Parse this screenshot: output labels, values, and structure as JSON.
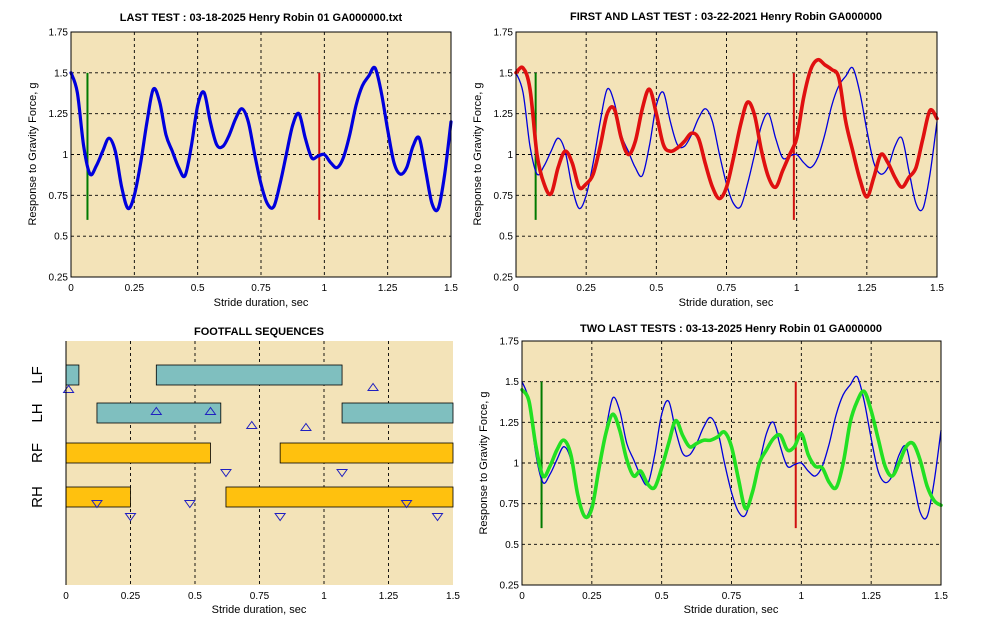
{
  "colors": {
    "plot_bg": "#f3e3b8",
    "grid": "#000000",
    "blue": "#0000dd",
    "red": "#e01010",
    "green": "#22e022",
    "marker_green": "#007a00",
    "marker_red": "#d01010",
    "teal": "#7fbfbf",
    "orange": "#ffc10e",
    "triangle": "#2020c0"
  },
  "chart_data": [
    {
      "id": "last-test",
      "type": "line",
      "title": "LAST TEST : 03-18-2025 Henry Robin 01 GA000000.txt",
      "xlabel": "Stride duration, sec",
      "ylabel": "Response to Gravity Force, g",
      "xlim": [
        0,
        1.5
      ],
      "ylim": [
        0.25,
        1.75
      ],
      "xticks": [
        0,
        0.25,
        0.5,
        0.75,
        1,
        1.25,
        1.5
      ],
      "yticks": [
        0.25,
        0.5,
        0.75,
        1,
        1.25,
        1.5,
        1.75
      ],
      "xtick_labels": [
        "0",
        "0.25",
        "0.5",
        "0.75",
        "1",
        "1.25",
        "1.5"
      ],
      "ytick_labels": [
        "0.25",
        "0.5",
        "0.75",
        "1",
        "1.25",
        "1.5",
        "1.75"
      ],
      "vlines": [
        {
          "x": 0.065,
          "y": [
            0.6,
            1.5
          ],
          "color": "marker_green"
        },
        {
          "x": 0.98,
          "y": [
            0.6,
            1.5
          ],
          "color": "marker_red"
        }
      ],
      "series": [
        {
          "name": "last",
          "color": "blue",
          "width": 3.2,
          "x": [
            0,
            0.025,
            0.05,
            0.075,
            0.1,
            0.125,
            0.15,
            0.175,
            0.2,
            0.225,
            0.25,
            0.275,
            0.3,
            0.325,
            0.35,
            0.375,
            0.4,
            0.425,
            0.45,
            0.475,
            0.5,
            0.525,
            0.55,
            0.575,
            0.6,
            0.625,
            0.65,
            0.675,
            0.7,
            0.725,
            0.75,
            0.775,
            0.8,
            0.825,
            0.85,
            0.875,
            0.9,
            0.925,
            0.95,
            0.975,
            1.0,
            1.025,
            1.05,
            1.075,
            1.1,
            1.125,
            1.15,
            1.175,
            1.2,
            1.225,
            1.25,
            1.275,
            1.3,
            1.325,
            1.35,
            1.375,
            1.4,
            1.425,
            1.45,
            1.475,
            1.5
          ],
          "y": [
            1.5,
            1.38,
            1.05,
            0.88,
            0.93,
            1.02,
            1.1,
            1.02,
            0.8,
            0.67,
            0.75,
            0.95,
            1.2,
            1.4,
            1.32,
            1.12,
            1.02,
            0.92,
            0.87,
            1.05,
            1.3,
            1.38,
            1.2,
            1.06,
            1.05,
            1.12,
            1.22,
            1.28,
            1.2,
            1.0,
            0.82,
            0.7,
            0.68,
            0.82,
            1.0,
            1.18,
            1.25,
            1.1,
            0.98,
            0.99,
            1.0,
            0.95,
            0.92,
            0.98,
            1.12,
            1.3,
            1.42,
            1.48,
            1.53,
            1.38,
            1.15,
            0.95,
            0.88,
            0.92,
            1.05,
            1.1,
            0.9,
            0.7,
            0.67,
            0.88,
            1.2
          ]
        }
      ]
    },
    {
      "id": "first-and-last-test",
      "type": "line",
      "title": "FIRST AND LAST TEST : 03-22-2021 Henry Robin GA000000",
      "xlabel": "Stride duration, sec",
      "ylabel": "Response to Gravity Force, g",
      "xlim": [
        0,
        1.5
      ],
      "ylim": [
        0.25,
        1.75
      ],
      "xticks": [
        0,
        0.25,
        0.5,
        0.75,
        1,
        1.25,
        1.5
      ],
      "yticks": [
        0.25,
        0.5,
        0.75,
        1,
        1.25,
        1.5,
        1.75
      ],
      "xtick_labels": [
        "0",
        "0.25",
        "0.5",
        "0.75",
        "1",
        "1.25",
        "1.5"
      ],
      "ytick_labels": [
        "0.25",
        "0.5",
        "0.75",
        "1",
        "1.25",
        "1.5",
        "1.75"
      ],
      "vlines": [
        {
          "x": 0.07,
          "y": [
            0.6,
            1.5
          ],
          "color": "marker_green"
        },
        {
          "x": 0.99,
          "y": [
            0.6,
            1.5
          ],
          "color": "marker_red"
        }
      ],
      "series": [
        {
          "name": "last",
          "color": "blue",
          "width": 1.3,
          "x": [
            0,
            0.025,
            0.05,
            0.075,
            0.1,
            0.125,
            0.15,
            0.175,
            0.2,
            0.225,
            0.25,
            0.275,
            0.3,
            0.325,
            0.35,
            0.375,
            0.4,
            0.425,
            0.45,
            0.475,
            0.5,
            0.525,
            0.55,
            0.575,
            0.6,
            0.625,
            0.65,
            0.675,
            0.7,
            0.725,
            0.75,
            0.775,
            0.8,
            0.825,
            0.85,
            0.875,
            0.9,
            0.925,
            0.95,
            0.975,
            1.0,
            1.025,
            1.05,
            1.075,
            1.1,
            1.125,
            1.15,
            1.175,
            1.2,
            1.225,
            1.25,
            1.275,
            1.3,
            1.325,
            1.35,
            1.375,
            1.4,
            1.425,
            1.45,
            1.475,
            1.5
          ],
          "y": [
            1.5,
            1.38,
            1.05,
            0.88,
            0.93,
            1.02,
            1.1,
            1.02,
            0.8,
            0.67,
            0.75,
            0.95,
            1.2,
            1.4,
            1.32,
            1.12,
            1.02,
            0.92,
            0.87,
            1.05,
            1.3,
            1.38,
            1.2,
            1.06,
            1.05,
            1.12,
            1.22,
            1.28,
            1.2,
            1.0,
            0.82,
            0.7,
            0.68,
            0.82,
            1.0,
            1.18,
            1.25,
            1.1,
            0.98,
            0.99,
            1.0,
            0.95,
            0.92,
            0.98,
            1.12,
            1.3,
            1.42,
            1.48,
            1.53,
            1.38,
            1.15,
            0.95,
            0.88,
            0.92,
            1.05,
            1.1,
            0.9,
            0.7,
            0.67,
            0.88,
            1.2
          ]
        },
        {
          "name": "first",
          "color": "red",
          "width": 3.6,
          "x": [
            0,
            0.025,
            0.05,
            0.075,
            0.1,
            0.125,
            0.15,
            0.175,
            0.2,
            0.225,
            0.25,
            0.275,
            0.3,
            0.325,
            0.35,
            0.375,
            0.4,
            0.425,
            0.45,
            0.475,
            0.5,
            0.525,
            0.55,
            0.575,
            0.6,
            0.625,
            0.65,
            0.675,
            0.7,
            0.725,
            0.75,
            0.775,
            0.8,
            0.825,
            0.85,
            0.875,
            0.9,
            0.925,
            0.95,
            0.975,
            1.0,
            1.025,
            1.05,
            1.075,
            1.1,
            1.125,
            1.15,
            1.175,
            1.2,
            1.225,
            1.25,
            1.275,
            1.3,
            1.325,
            1.35,
            1.375,
            1.4,
            1.425,
            1.45,
            1.475,
            1.5
          ],
          "y": [
            1.5,
            1.53,
            1.4,
            1.0,
            0.82,
            0.76,
            0.92,
            1.02,
            0.95,
            0.8,
            0.82,
            0.88,
            1.05,
            1.25,
            1.28,
            1.1,
            1.0,
            1.08,
            1.28,
            1.4,
            1.25,
            1.06,
            1.02,
            1.04,
            1.08,
            1.13,
            1.1,
            0.94,
            0.8,
            0.73,
            0.8,
            0.98,
            1.18,
            1.32,
            1.24,
            1.02,
            0.86,
            0.8,
            0.9,
            1.0,
            1.1,
            1.35,
            1.52,
            1.58,
            1.55,
            1.52,
            1.47,
            1.2,
            1.02,
            0.85,
            0.74,
            0.86,
            1.0,
            0.95,
            0.86,
            0.8,
            0.86,
            0.92,
            1.1,
            1.27,
            1.22
          ]
        }
      ]
    },
    {
      "id": "footfall-sequences",
      "type": "gantt",
      "title": "FOOTFALL SEQUENCES",
      "xlabel": "Stride duration, sec",
      "xlim": [
        0,
        1.5
      ],
      "xticks": [
        0,
        0.25,
        0.5,
        0.75,
        1,
        1.25,
        1.5
      ],
      "xtick_labels": [
        "0",
        "0.25",
        "0.5",
        "0.75",
        "1",
        "1.25",
        "1.5"
      ],
      "rows": [
        {
          "label": "LF",
          "color": "teal",
          "intervals": [
            [
              0,
              0.05
            ],
            [
              0.35,
              1.07
            ]
          ],
          "triangles": [
            {
              "x": 0.01,
              "dir": "up",
              "row_offset": 1
            },
            {
              "x": 1.19,
              "dir": "up",
              "row_offset": 0
            }
          ]
        },
        {
          "label": "LH",
          "color": "teal",
          "intervals": [
            [
              0.12,
              0.6
            ],
            [
              1.07,
              1.5
            ]
          ],
          "triangles": [
            {
              "x": 0.35,
              "dir": "up",
              "row_offset": -1
            },
            {
              "x": 0.56,
              "dir": "up",
              "row_offset": -1
            },
            {
              "x": 0.72,
              "dir": "up",
              "row_offset": 0
            },
            {
              "x": 0.93,
              "dir": "up",
              "row_offset": 1
            }
          ]
        },
        {
          "label": "RF",
          "color": "orange",
          "intervals": [
            [
              0,
              0.56
            ],
            [
              0.83,
              1.5
            ]
          ],
          "triangles": [
            {
              "x": 0.62,
              "dir": "down",
              "row_offset": 0
            },
            {
              "x": 1.07,
              "dir": "down",
              "row_offset": 1
            }
          ]
        },
        {
          "label": "RH",
          "color": "orange",
          "intervals": [
            [
              0,
              0.25
            ],
            [
              0.62,
              1.5
            ]
          ],
          "triangles": [
            {
              "x": 0.12,
              "dir": "down",
              "row_offset": -1
            },
            {
              "x": 0.48,
              "dir": "down",
              "row_offset": -1
            },
            {
              "x": 0.25,
              "dir": "down",
              "row_offset": 0
            },
            {
              "x": 0.83,
              "dir": "down",
              "row_offset": 0
            },
            {
              "x": 1.32,
              "dir": "down",
              "row_offset": -1
            },
            {
              "x": 1.44,
              "dir": "down",
              "row_offset": 0
            }
          ]
        }
      ]
    },
    {
      "id": "two-last-tests",
      "type": "line",
      "title": "TWO LAST TESTS : 03-13-2025 Henry Robin 01 GA000000",
      "xlabel": "Stride duration, sec",
      "ylabel": "Response to Gravity Force, g",
      "xlim": [
        0,
        1.5
      ],
      "ylim": [
        0.25,
        1.75
      ],
      "xticks": [
        0,
        0.25,
        0.5,
        0.75,
        1,
        1.25,
        1.5
      ],
      "yticks": [
        0.25,
        0.5,
        0.75,
        1,
        1.25,
        1.5,
        1.75
      ],
      "xtick_labels": [
        "0",
        "0.25",
        "0.5",
        "0.75",
        "1",
        "1.25",
        "1.5"
      ],
      "ytick_labels": [
        "0.25",
        "0.5",
        "0.75",
        "1",
        "1.25",
        "1.5",
        "1.75"
      ],
      "vlines": [
        {
          "x": 0.07,
          "y": [
            0.6,
            1.5
          ],
          "color": "marker_green"
        },
        {
          "x": 0.98,
          "y": [
            0.6,
            1.5
          ],
          "color": "marker_red"
        }
      ],
      "series": [
        {
          "name": "last",
          "color": "blue",
          "width": 1.3,
          "x": [
            0,
            0.025,
            0.05,
            0.075,
            0.1,
            0.125,
            0.15,
            0.175,
            0.2,
            0.225,
            0.25,
            0.275,
            0.3,
            0.325,
            0.35,
            0.375,
            0.4,
            0.425,
            0.45,
            0.475,
            0.5,
            0.525,
            0.55,
            0.575,
            0.6,
            0.625,
            0.65,
            0.675,
            0.7,
            0.725,
            0.75,
            0.775,
            0.8,
            0.825,
            0.85,
            0.875,
            0.9,
            0.925,
            0.95,
            0.975,
            1.0,
            1.025,
            1.05,
            1.075,
            1.1,
            1.125,
            1.15,
            1.175,
            1.2,
            1.225,
            1.25,
            1.275,
            1.3,
            1.325,
            1.35,
            1.375,
            1.4,
            1.425,
            1.45,
            1.475,
            1.5
          ],
          "y": [
            1.5,
            1.38,
            1.05,
            0.88,
            0.93,
            1.02,
            1.1,
            1.02,
            0.8,
            0.67,
            0.75,
            0.95,
            1.2,
            1.4,
            1.32,
            1.12,
            1.02,
            0.92,
            0.87,
            1.05,
            1.3,
            1.38,
            1.2,
            1.06,
            1.05,
            1.12,
            1.22,
            1.28,
            1.2,
            1.0,
            0.82,
            0.7,
            0.68,
            0.82,
            1.0,
            1.18,
            1.25,
            1.1,
            0.98,
            0.99,
            1.0,
            0.95,
            0.92,
            0.98,
            1.12,
            1.3,
            1.42,
            1.48,
            1.53,
            1.38,
            1.15,
            0.95,
            0.88,
            0.92,
            1.05,
            1.1,
            0.9,
            0.7,
            0.67,
            0.88,
            1.2
          ]
        },
        {
          "name": "previous",
          "color": "green",
          "width": 3.6,
          "x": [
            0,
            0.025,
            0.05,
            0.075,
            0.1,
            0.125,
            0.15,
            0.175,
            0.2,
            0.225,
            0.25,
            0.275,
            0.3,
            0.325,
            0.35,
            0.375,
            0.4,
            0.425,
            0.45,
            0.475,
            0.5,
            0.525,
            0.55,
            0.575,
            0.6,
            0.625,
            0.65,
            0.675,
            0.7,
            0.725,
            0.75,
            0.775,
            0.8,
            0.825,
            0.85,
            0.875,
            0.9,
            0.925,
            0.95,
            0.975,
            1.0,
            1.025,
            1.05,
            1.075,
            1.1,
            1.125,
            1.15,
            1.175,
            1.2,
            1.225,
            1.25,
            1.275,
            1.3,
            1.325,
            1.35,
            1.375,
            1.4,
            1.425,
            1.45,
            1.475,
            1.5
          ],
          "y": [
            1.45,
            1.38,
            1.1,
            0.92,
            0.98,
            1.08,
            1.14,
            1.05,
            0.8,
            0.67,
            0.72,
            0.96,
            1.18,
            1.3,
            1.2,
            1.02,
            0.92,
            0.95,
            0.87,
            0.85,
            0.97,
            1.12,
            1.26,
            1.17,
            1.1,
            1.12,
            1.14,
            1.14,
            1.16,
            1.19,
            1.1,
            0.9,
            0.72,
            0.82,
            1.0,
            1.08,
            1.15,
            1.17,
            1.08,
            1.1,
            1.18,
            1.05,
            0.98,
            0.97,
            0.88,
            0.85,
            1.0,
            1.25,
            1.38,
            1.44,
            1.32,
            1.15,
            0.98,
            0.92,
            1.0,
            1.1,
            1.12,
            1.02,
            0.86,
            0.77,
            0.74
          ]
        }
      ]
    }
  ]
}
